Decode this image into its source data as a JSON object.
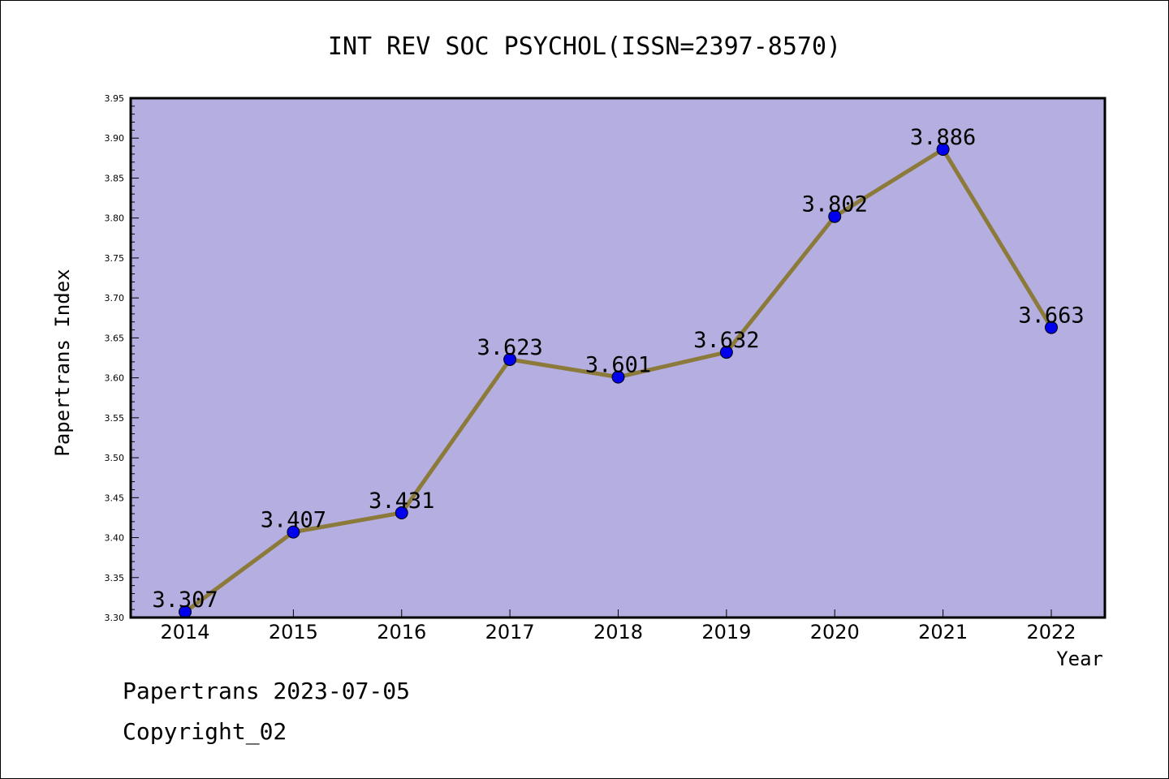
{
  "chart_data": {
    "type": "line",
    "title": "INT REV SOC PSYCHOL(ISSN=2397-8570)",
    "xlabel": "Year",
    "ylabel": "Papertrans Index",
    "categories": [
      "2014",
      "2015",
      "2016",
      "2017",
      "2018",
      "2019",
      "2020",
      "2021",
      "2022"
    ],
    "series": [
      {
        "values": [
          3.307,
          3.407,
          3.431,
          3.623,
          3.601,
          3.632,
          3.802,
          3.886,
          3.663
        ]
      }
    ],
    "data_labels": [
      "3.307",
      "3.407",
      "3.431",
      "3.623",
      "3.601",
      "3.632",
      "3.802",
      "3.886",
      "3.663"
    ],
    "ylim": [
      3.3,
      3.95
    ],
    "yticks": [
      "3.30",
      "3.35",
      "3.40",
      "3.45",
      "3.50",
      "3.55",
      "3.60",
      "3.65",
      "3.70",
      "3.75",
      "3.80",
      "3.85",
      "3.90",
      "3.95"
    ],
    "grid": false,
    "colors": {
      "plot_background": "#b5aee1",
      "line": "#8b7a3a",
      "marker": "#0000ee"
    }
  },
  "footer": {
    "date_line": "Papertrans 2023-07-05",
    "copyright": "Copyright_02"
  }
}
